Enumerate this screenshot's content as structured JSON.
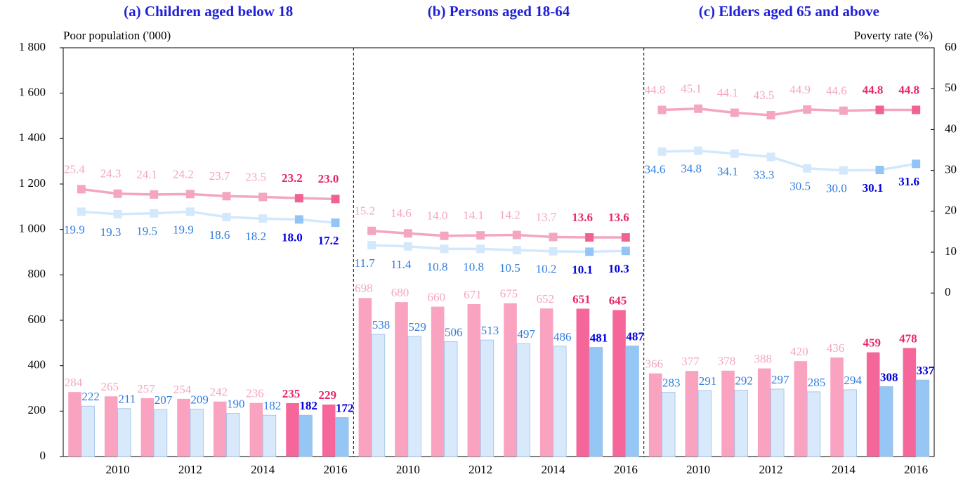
{
  "chart_data": {
    "type": "bar",
    "ylabel": "Poor population ('000)",
    "y2label": "Poverty rate  (%)",
    "categories": [
      null,
      "2010",
      null,
      "2012",
      null,
      "2014",
      null,
      "2016"
    ],
    "ylim": [
      0,
      1800
    ],
    "yticks": [
      0,
      200,
      400,
      600,
      800,
      {
        "value": 1000,
        "label": "1 000"
      },
      {
        "value": 1200,
        "label": "1 200"
      },
      {
        "value": 1400,
        "label": "1 400"
      },
      {
        "value": 1600,
        "label": "1 600"
      },
      {
        "value": 1800,
        "label": "1 800"
      }
    ],
    "y2lim": [
      -40,
      60
    ],
    "y2ticks": [
      0,
      10,
      20,
      30,
      40,
      50,
      60
    ],
    "highlight": [
      false,
      false,
      false,
      false,
      false,
      false,
      true,
      true
    ],
    "panels": [
      {
        "title": "(a) Children aged below 18",
        "series": [
          {
            "kind": "bar",
            "color": "#f9a3c1",
            "highlight_color": "#f5669b",
            "label_color": "#f4a6c0",
            "highlight_label_color": "#e8266c",
            "values": [
              284,
              265,
              257,
              254,
              242,
              236,
              235,
              229
            ]
          },
          {
            "kind": "bar",
            "color": "#d8e9fb",
            "highlight_color": "#96c7f4",
            "label_color": "#2f7de0",
            "highlight_label_color": "#0000e0",
            "values": [
              222,
              211,
              207,
              209,
              190,
              182,
              182,
              172
            ]
          },
          {
            "kind": "line",
            "axis": "y2",
            "color": "#f4a6c0",
            "highlight_color": "#f0628f",
            "label_color": "#f4a6c0",
            "highlight_label_color": "#e8266c",
            "values": [
              25.4,
              24.3,
              24.1,
              24.2,
              23.7,
              23.5,
              23.2,
              23.0
            ],
            "value_labels": [
              "25.4",
              "24.3",
              "24.1",
              "24.2",
              "23.7",
              "23.5",
              "23.2",
              "23.0"
            ]
          },
          {
            "kind": "line",
            "axis": "y2",
            "color": "#d4e8fb",
            "highlight_color": "#92c5f5",
            "label_color": "#2f7de0",
            "highlight_label_color": "#0000e0",
            "values": [
              19.9,
              19.3,
              19.5,
              19.9,
              18.6,
              18.2,
              18.0,
              17.2
            ],
            "value_labels": [
              "19.9",
              "19.3",
              "19.5",
              "19.9",
              "18.6",
              "18.2",
              "18.0",
              "17.2"
            ]
          }
        ]
      },
      {
        "title": "(b) Persons aged 18-64",
        "series": [
          {
            "kind": "bar",
            "color": "#f9a3c1",
            "highlight_color": "#f5669b",
            "label_color": "#f4a6c0",
            "highlight_label_color": "#e8266c",
            "values": [
              698,
              680,
              660,
              671,
              675,
              652,
              651,
              645
            ]
          },
          {
            "kind": "bar",
            "color": "#d8e9fb",
            "highlight_color": "#96c7f4",
            "label_color": "#2f7de0",
            "highlight_label_color": "#0000e0",
            "values": [
              538,
              529,
              506,
              513,
              497,
              486,
              481,
              487
            ]
          },
          {
            "kind": "line",
            "axis": "y2",
            "color": "#f4a6c0",
            "highlight_color": "#f0628f",
            "label_color": "#f4a6c0",
            "highlight_label_color": "#e8266c",
            "values": [
              15.2,
              14.6,
              14.0,
              14.1,
              14.2,
              13.7,
              13.6,
              13.6
            ],
            "value_labels": [
              "15.2",
              "14.6",
              "14.0",
              "14.1",
              "14.2",
              "13.7",
              "13.6",
              "13.6"
            ]
          },
          {
            "kind": "line",
            "axis": "y2",
            "color": "#d4e8fb",
            "highlight_color": "#92c5f5",
            "label_color": "#2f7de0",
            "highlight_label_color": "#0000e0",
            "values": [
              11.7,
              11.4,
              10.8,
              10.8,
              10.5,
              10.2,
              10.1,
              10.3
            ],
            "value_labels": [
              "11.7",
              "11.4",
              "10.8",
              "10.8",
              "10.5",
              "10.2",
              "10.1",
              "10.3"
            ]
          }
        ]
      },
      {
        "title": "(c) Elders aged 65 and above",
        "series": [
          {
            "kind": "bar",
            "color": "#f9a3c1",
            "highlight_color": "#f5669b",
            "label_color": "#f4a6c0",
            "highlight_label_color": "#e8266c",
            "values": [
              366,
              377,
              378,
              388,
              420,
              436,
              459,
              478
            ]
          },
          {
            "kind": "bar",
            "color": "#d8e9fb",
            "highlight_color": "#96c7f4",
            "label_color": "#2f7de0",
            "highlight_label_color": "#0000e0",
            "values": [
              283,
              291,
              292,
              297,
              285,
              294,
              308,
              337
            ]
          },
          {
            "kind": "line",
            "axis": "y2",
            "color": "#f4a6c0",
            "highlight_color": "#f0628f",
            "label_color": "#f4a6c0",
            "highlight_label_color": "#e8266c",
            "values": [
              44.8,
              45.1,
              44.1,
              43.5,
              44.9,
              44.6,
              44.8,
              44.8
            ],
            "value_labels": [
              "44.8",
              "45.1",
              "44.1",
              "43.5",
              "44.9",
              "44.6",
              "44.8",
              "44.8"
            ]
          },
          {
            "kind": "line",
            "axis": "y2",
            "color": "#d4e8fb",
            "highlight_color": "#92c5f5",
            "label_color": "#2f7de0",
            "highlight_label_color": "#0000e0",
            "values": [
              34.6,
              34.8,
              34.1,
              33.3,
              30.5,
              30.0,
              30.1,
              31.6
            ],
            "value_labels": [
              "34.6",
              "34.8",
              "34.1",
              "33.3",
              "30.5",
              "30.0",
              "30.1",
              "31.6"
            ]
          }
        ]
      }
    ]
  }
}
